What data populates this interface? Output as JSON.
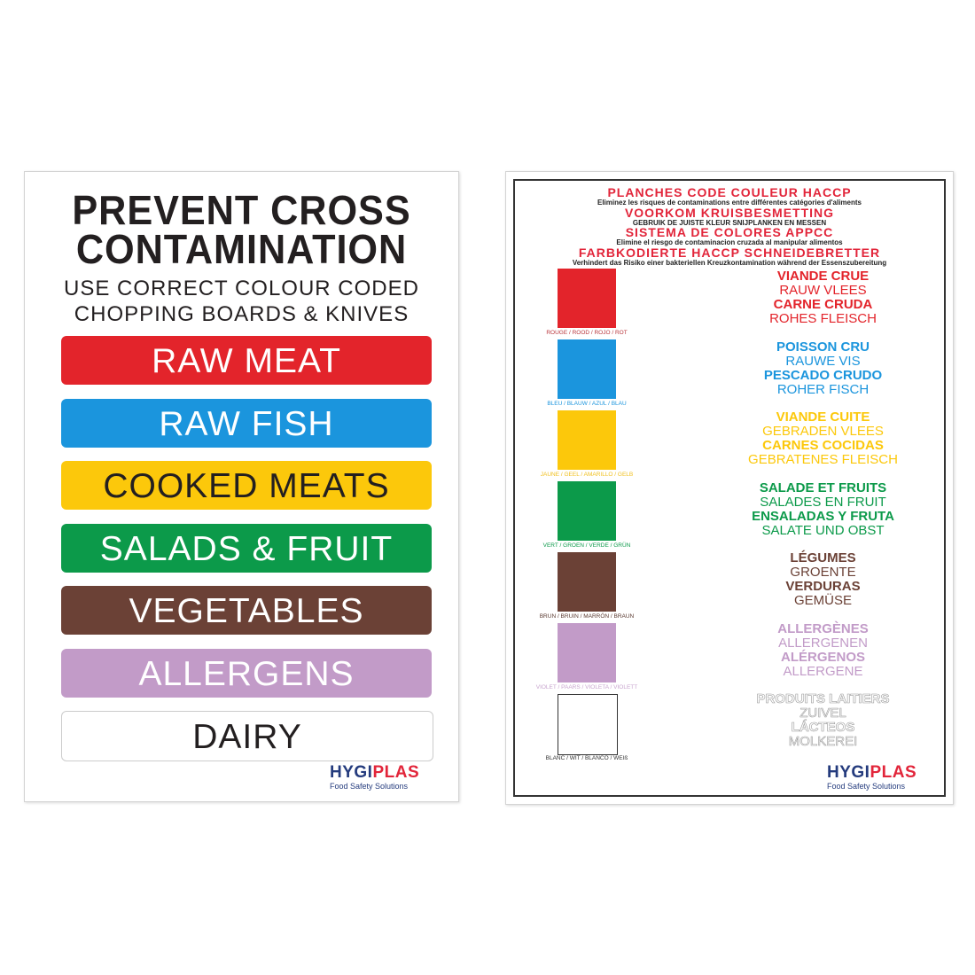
{
  "left": {
    "title": [
      "PREVENT CROSS",
      "CONTAMINATION"
    ],
    "subtitle": [
      "USE CORRECT COLOUR CODED",
      "CHOPPING BOARDS & KNIVES"
    ],
    "bars": [
      {
        "label": "RAW MEAT",
        "bg": "#e3242b",
        "fg": "#ffffff"
      },
      {
        "label": "RAW FISH",
        "bg": "#1b95dd",
        "fg": "#ffffff"
      },
      {
        "label": "COOKED MEATS",
        "bg": "#fcc80b",
        "fg": "#231f20"
      },
      {
        "label": "SALADS & FRUIT",
        "bg": "#0c9a4a",
        "fg": "#ffffff"
      },
      {
        "label": "VEGETABLES",
        "bg": "#6b4136",
        "fg": "#ffffff"
      },
      {
        "label": "ALLERGENS",
        "bg": "#c29bc8",
        "fg": "#ffffff"
      },
      {
        "label": "DAIRY",
        "bg": "#ffffff",
        "fg": "#231f20"
      }
    ],
    "logo": {
      "a": "HYGI",
      "b": "PLAS",
      "tagline": "Food Safety Solutions"
    }
  },
  "right": {
    "header": [
      {
        "title": "PLANCHES CODE COULEUR HACCP",
        "sub": "Eliminez les risques de contaminations entre différentes catégories d'aliments"
      },
      {
        "title": "VOORKOM KRUISBESMETTING",
        "sub": "GEBRUIK DE JUISTE KLEUR SNIJPLANKEN EN MESSEN"
      },
      {
        "title": "SISTEMA DE COLORES APPCC",
        "sub": "Elimine el riesgo de contaminacion cruzada al manipular alimentos"
      },
      {
        "title": "FARBKODIERTE HACCP SCHNEIDEBRETTER",
        "sub": "Verhindert das Risiko einer bakteriellen Kreuzkontamination während der Essenszubereitung"
      }
    ],
    "swatches": [
      {
        "label": "ROUGE / ROOD / ROJO / ROT",
        "color": "#e3242b",
        "text": "#b8343a"
      },
      {
        "label": "BLEU / BLAUW / AZUL / BLAU",
        "color": "#1b95dd",
        "text": "#1b95dd"
      },
      {
        "label": "JAUNE / GEEL / AMARILLO / GELB",
        "color": "#fcc80b",
        "text": "#f0c020"
      },
      {
        "label": "VERT / GROEN / VERDE / GRÜN",
        "color": "#0c9a4a",
        "text": "#0c9a4a"
      },
      {
        "label": "BRUN / BRUIN / MARRÓN / BRAUN",
        "color": "#6b4136",
        "text": "#5a3a30"
      },
      {
        "label": "VIOLET / PAARS / VIOLETA / VIOLETT",
        "color": "#c29bc8",
        "text": "#c9a6cf"
      },
      {
        "label": "BLANC / WIT / BLANCO / WEIß",
        "color": "#ffffff",
        "text": "#333333"
      }
    ],
    "groups": [
      {
        "lines": [
          "VIANDE CRUE",
          "RAUW VLEES",
          "CARNE CRUDA",
          "ROHES FLEISCH"
        ],
        "color": "#e3242b"
      },
      {
        "lines": [
          "POISSON CRU",
          "RAUWE VIS",
          "PESCADO CRUDO",
          "ROHER FISCH"
        ],
        "color": "#1b95dd"
      },
      {
        "lines": [
          "VIANDE CUITE",
          "GEBRADEN VLEES",
          "CARNES COCIDAS",
          "GEBRATENES FLEISCH"
        ],
        "color": "#fcc80b"
      },
      {
        "lines": [
          "SALADE ET FRUITS",
          "SALADES EN FRUIT",
          "ENSALADAS Y FRUTA",
          "SALATE UND OBST"
        ],
        "color": "#0c9a4a"
      },
      {
        "lines": [
          "LÉGUMES",
          "GROENTE",
          "VERDURAS",
          "GEMÜSE"
        ],
        "color": "#6b4136"
      },
      {
        "lines": [
          "ALLERGÈNES",
          "ALLERGENEN",
          "ALÉRGENOS",
          "ALLERGENE"
        ],
        "color": "#c29bc8"
      },
      {
        "lines": [
          "PRODUITS LAITIERS",
          "ZUIVEL",
          "LÁCTEOS",
          "MOLKEREI"
        ],
        "color": "#ffffff"
      }
    ],
    "logo": {
      "a": "HYGI",
      "b": "PLAS",
      "tagline": "Food Safety Solutions"
    }
  }
}
